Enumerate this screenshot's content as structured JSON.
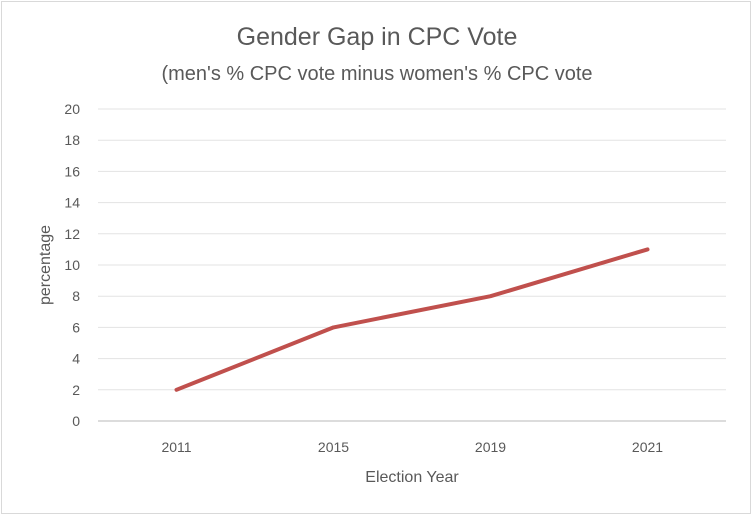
{
  "chart_data": {
    "type": "line",
    "title": "Gender Gap in CPC Vote",
    "subtitle": "(men's % CPC vote minus women's % CPC vote",
    "xlabel": "Election Year",
    "ylabel": "percentage",
    "categories": [
      "2011",
      "2015",
      "2019",
      "2021"
    ],
    "series": [
      {
        "values": [
          2,
          6,
          8,
          11
        ],
        "color": "#C0504D"
      }
    ],
    "ylim": [
      0,
      20
    ],
    "yticks": [
      0,
      2,
      4,
      6,
      8,
      10,
      12,
      14,
      16,
      18,
      20
    ],
    "grid": true,
    "legend": "none"
  }
}
